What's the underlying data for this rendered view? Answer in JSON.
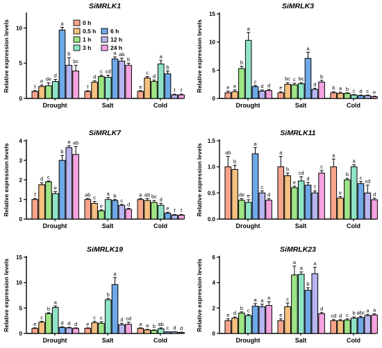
{
  "colors": {
    "0 h": "#f7a48c",
    "0.5 h": "#f5c080",
    "1 h": "#9ee486",
    "3 h": "#8fe3c4",
    "6 h": "#6fa8e6",
    "12 h": "#b8b4ef",
    "24 h": "#f5a3e0"
  },
  "legend": {
    "entries": [
      "0 h",
      "0.5 h",
      "1 h",
      "3 h",
      "6 h",
      "12 h",
      "24 h"
    ]
  },
  "chart_data": [
    {
      "type": "bar",
      "title": "SiMRLK1",
      "ylabel": "Relative expression levels",
      "ylim": [
        0,
        12
      ],
      "yticks": [
        0,
        5,
        10
      ],
      "categories": [
        "Drought",
        "Salt",
        "Cold"
      ],
      "series": [
        {
          "name": "0 h",
          "values": [
            1.0,
            1.0,
            1.0
          ],
          "errors": [
            0.1,
            0.1,
            0.1
          ]
        },
        {
          "name": "0.5 h",
          "values": [
            1.7,
            2.3,
            2.9
          ],
          "errors": [
            0.2,
            0.2,
            0.2
          ]
        },
        {
          "name": "1 h",
          "values": [
            1.8,
            3.1,
            2.4
          ],
          "errors": [
            0.4,
            0.2,
            0.2
          ]
        },
        {
          "name": "3 h",
          "values": [
            2.4,
            3.0,
            4.9
          ],
          "errors": [
            0.3,
            0.3,
            0.5
          ]
        },
        {
          "name": "6 h",
          "values": [
            9.7,
            5.6,
            3.5
          ],
          "errors": [
            0.4,
            0.3,
            0.4
          ]
        },
        {
          "name": "12 h",
          "values": [
            4.7,
            5.3,
            0.5
          ],
          "errors": [
            1.1,
            0.4,
            0.1
          ]
        },
        {
          "name": "24 h",
          "values": [
            3.9,
            4.7,
            0.5
          ],
          "errors": [
            0.8,
            0.3,
            0.1
          ]
        }
      ],
      "letters": [
        [
          "f",
          "e",
          "de",
          "d",
          "a",
          "b",
          "bc"
        ],
        [
          "f",
          "d",
          "c",
          "cd",
          "a",
          "ab",
          "b"
        ],
        [
          "e",
          "c",
          "d",
          "a",
          "b",
          "f",
          "f"
        ]
      ]
    },
    {
      "type": "bar",
      "title": "SiMRLK3",
      "ylabel": "Relative expression levels",
      "ylim": [
        0,
        15
      ],
      "yticks": [
        0,
        5,
        10,
        15
      ],
      "categories": [
        "Drought",
        "Salt",
        "Cold"
      ],
      "series": [
        {
          "name": "0 h",
          "values": [
            1.0,
            1.0,
            1.0
          ],
          "errors": [
            0.3,
            0.2,
            0.2
          ]
        },
        {
          "name": "0.5 h",
          "values": [
            1.2,
            2.5,
            0.9
          ],
          "errors": [
            0.3,
            0.3,
            0.2
          ]
        },
        {
          "name": "1 h",
          "values": [
            5.3,
            2.4,
            0.9
          ],
          "errors": [
            0.4,
            0.3,
            0.1
          ]
        },
        {
          "name": "3 h",
          "values": [
            10.3,
            2.6,
            0.6
          ],
          "errors": [
            1.4,
            0.2,
            0.1
          ]
        },
        {
          "name": "6 h",
          "values": [
            2.1,
            7.1,
            0.5
          ],
          "errors": [
            0.2,
            1.1,
            0.1
          ]
        },
        {
          "name": "12 h",
          "values": [
            1.3,
            1.6,
            0.5
          ],
          "errors": [
            0.2,
            0.2,
            0.1
          ]
        },
        {
          "name": "24 h",
          "values": [
            1.4,
            2.9,
            0.3
          ],
          "errors": [
            0.2,
            0.3,
            0.1
          ]
        }
      ],
      "letters": [
        [
          "e",
          "e",
          "b",
          "a",
          "c",
          "d",
          "d"
        ],
        [
          "e",
          "bc",
          "c",
          "bc",
          "a",
          "d",
          "b"
        ],
        [
          "b",
          "a",
          "b",
          "c",
          "d",
          "c",
          "e"
        ]
      ]
    },
    {
      "type": "bar",
      "title": "SiMRLK7",
      "ylabel": "Relative expression levels",
      "ylim": [
        0,
        4
      ],
      "yticks": [
        0,
        1,
        2,
        3,
        4
      ],
      "categories": [
        "Drought",
        "Salt",
        "Cold"
      ],
      "series": [
        {
          "name": "0 h",
          "values": [
            1.0,
            1.0,
            1.0
          ],
          "errors": [
            0.05,
            0.05,
            0.05
          ]
        },
        {
          "name": "0.5 h",
          "values": [
            1.75,
            0.8,
            0.95
          ],
          "errors": [
            0.1,
            0.1,
            0.1
          ]
        },
        {
          "name": "1 h",
          "values": [
            1.9,
            0.42,
            0.85
          ],
          "errors": [
            0.05,
            0.05,
            0.1
          ]
        },
        {
          "name": "3 h",
          "values": [
            1.3,
            1.0,
            0.7
          ],
          "errors": [
            0.1,
            0.1,
            0.1
          ]
        },
        {
          "name": "6 h",
          "values": [
            3.0,
            0.95,
            0.3
          ],
          "errors": [
            0.25,
            0.05,
            0.05
          ]
        },
        {
          "name": "12 h",
          "values": [
            3.65,
            0.7,
            0.2
          ],
          "errors": [
            0.1,
            0.05,
            0.03
          ]
        },
        {
          "name": "24 h",
          "values": [
            3.3,
            0.5,
            0.2
          ],
          "errors": [
            0.4,
            0.05,
            0.03
          ]
        }
      ],
      "letters": [
        [
          "f",
          "d",
          "c",
          "e",
          "b",
          "a",
          "ab"
        ],
        [
          "ab",
          "c",
          "e",
          "a",
          "b",
          "c",
          "d"
        ],
        [
          "a",
          "ab",
          "bc",
          "d",
          "e",
          "f",
          "f"
        ]
      ]
    },
    {
      "type": "bar",
      "title": "SiMRLK11",
      "ylabel": "Relative expression levels",
      "ylim": [
        0,
        1.5
      ],
      "yticks": [
        0.0,
        0.5,
        1.0,
        1.5
      ],
      "categories": [
        "Drought",
        "Salt",
        "Cold"
      ],
      "series": [
        {
          "name": "0 h",
          "values": [
            1.0,
            1.0,
            1.0
          ],
          "errors": [
            0.2,
            0.2,
            0.15
          ]
        },
        {
          "name": "0.5 h",
          "values": [
            0.95,
            0.83,
            0.4
          ],
          "errors": [
            0.08,
            0.05,
            0.03
          ]
        },
        {
          "name": "1 h",
          "values": [
            0.36,
            0.6,
            0.75
          ],
          "errors": [
            0.03,
            0.03,
            0.03
          ]
        },
        {
          "name": "3 h",
          "values": [
            0.32,
            0.73,
            1.0
          ],
          "errors": [
            0.05,
            0.08,
            0.04
          ]
        },
        {
          "name": "6 h",
          "values": [
            1.25,
            0.65,
            0.68
          ],
          "errors": [
            0.12,
            0.05,
            0.04
          ]
        },
        {
          "name": "12 h",
          "values": [
            0.5,
            0.5,
            0.5
          ],
          "errors": [
            0.04,
            0.04,
            0.15
          ]
        },
        {
          "name": "24 h",
          "values": [
            0.36,
            0.88,
            0.37
          ],
          "errors": [
            0.03,
            0.05,
            0.03
          ]
        }
      ],
      "letters": [
        [
          "ab",
          "b",
          "de",
          "e",
          "a",
          "c",
          "d"
        ],
        [
          "a",
          "b",
          "e",
          "cd",
          "d",
          "f",
          "c"
        ],
        [
          "a",
          "e",
          "b",
          "a",
          "c",
          "cd",
          "d"
        ]
      ]
    },
    {
      "type": "bar",
      "title": "SiMRLK19",
      "ylabel": "Relative expression levels",
      "ylim": [
        0,
        15
      ],
      "yticks": [
        0,
        5,
        10,
        15
      ],
      "categories": [
        "Drought",
        "Salt",
        "Cold"
      ],
      "series": [
        {
          "name": "0 h",
          "values": [
            1.0,
            1.0,
            1.0
          ],
          "errors": [
            0.1,
            0.1,
            0.1
          ]
        },
        {
          "name": "0.5 h",
          "values": [
            2.2,
            2.1,
            0.7
          ],
          "errors": [
            0.2,
            0.3,
            0.1
          ]
        },
        {
          "name": "1 h",
          "values": [
            3.9,
            2.0,
            0.6
          ],
          "errors": [
            0.2,
            0.3,
            0.1
          ]
        },
        {
          "name": "3 h",
          "values": [
            5.1,
            6.6,
            0.9
          ],
          "errors": [
            0.3,
            0.3,
            0.2
          ]
        },
        {
          "name": "6 h",
          "values": [
            1.2,
            9.6,
            0.3
          ],
          "errors": [
            0.1,
            1.4,
            0.05
          ]
        },
        {
          "name": "12 h",
          "values": [
            1.1,
            1.7,
            0.3
          ],
          "errors": [
            0.1,
            0.3,
            0.05
          ]
        },
        {
          "name": "24 h",
          "values": [
            1.0,
            1.8,
            0.2
          ],
          "errors": [
            0.1,
            0.4,
            0.05
          ]
        }
      ],
      "letters": [
        [
          "e",
          "c",
          "b",
          "a",
          "d",
          "d",
          "d"
        ],
        [
          "e",
          "c",
          "c",
          "b",
          "a",
          "d",
          "cd"
        ],
        [
          "a",
          "a",
          "b",
          "ab",
          "c",
          "d",
          "d"
        ]
      ]
    },
    {
      "type": "bar",
      "title": "SiMRLK23",
      "ylabel": "Relative expression levels",
      "ylim": [
        0,
        6
      ],
      "yticks": [
        0,
        2,
        4,
        6
      ],
      "categories": [
        "Drought",
        "Salt",
        "Cold"
      ],
      "series": [
        {
          "name": "0 h",
          "values": [
            1.0,
            1.0,
            1.0
          ],
          "errors": [
            0.15,
            0.15,
            0.1
          ]
        },
        {
          "name": "0.5 h",
          "values": [
            1.2,
            2.1,
            1.0
          ],
          "errors": [
            0.1,
            0.3,
            0.1
          ]
        },
        {
          "name": "1 h",
          "values": [
            1.6,
            4.6,
            1.05
          ],
          "errors": [
            0.1,
            0.7,
            0.1
          ]
        },
        {
          "name": "3 h",
          "values": [
            1.4,
            4.65,
            1.2
          ],
          "errors": [
            0.1,
            0.2,
            0.1
          ]
        },
        {
          "name": "6 h",
          "values": [
            2.15,
            3.4,
            1.25
          ],
          "errors": [
            0.2,
            0.2,
            0.1
          ]
        },
        {
          "name": "12 h",
          "values": [
            2.1,
            4.7,
            1.4
          ],
          "errors": [
            0.2,
            0.5,
            0.1
          ]
        },
        {
          "name": "24 h",
          "values": [
            2.2,
            1.55,
            1.45
          ],
          "errors": [
            0.3,
            0.1,
            0.1
          ]
        }
      ],
      "letters": [
        [
          "e",
          "d",
          "b",
          "c",
          "a",
          "a",
          "a"
        ],
        [
          "e",
          "c",
          "a",
          "a",
          "b",
          "a",
          "d"
        ],
        [
          "cd",
          "d",
          "c",
          "b",
          "abc",
          "a",
          "a"
        ]
      ]
    }
  ]
}
